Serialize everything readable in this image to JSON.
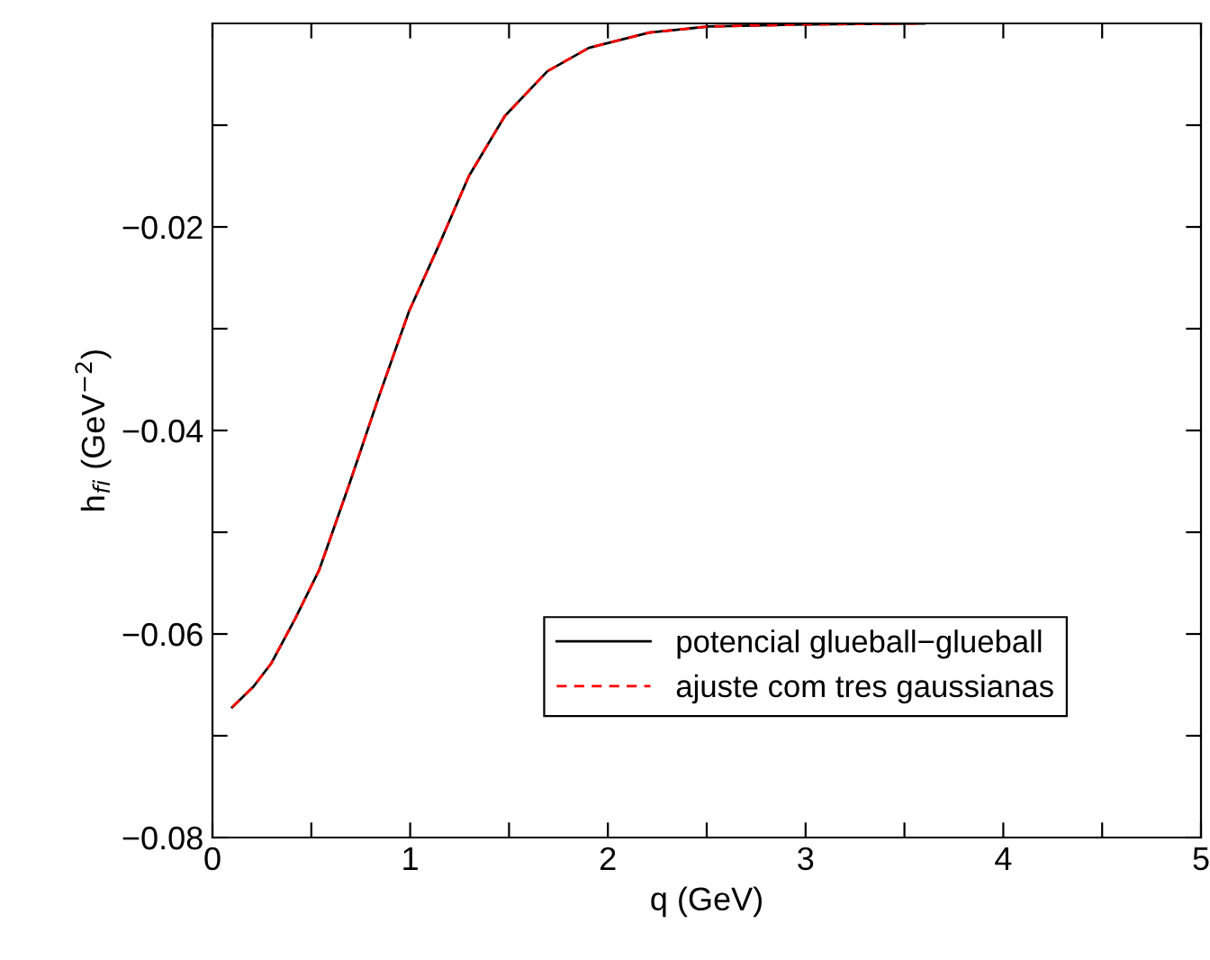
{
  "chart_data": {
    "type": "line",
    "xlabel": "q (GeV)",
    "ylabel": "h$_{fi}$ (GeV$^{−2}$)",
    "xlim": [
      0,
      5
    ],
    "ylim": [
      -0.08,
      0
    ],
    "xticks": [
      0,
      {
        "value": 0.5,
        "label": null
      },
      1,
      {
        "value": 1.5,
        "label": null
      },
      2,
      {
        "value": 2.5,
        "label": null
      },
      3,
      {
        "value": 3.5,
        "label": null
      },
      4,
      {
        "value": 4.5,
        "label": null
      },
      5
    ],
    "yticks": [
      -0.08,
      {
        "value": -0.07,
        "label": null
      },
      -0.06,
      {
        "value": -0.05,
        "label": null
      },
      -0.04,
      {
        "value": -0.03,
        "label": null
      },
      -0.02,
      {
        "value": -0.01,
        "label": null
      }
    ],
    "x": [
      0.1,
      0.206,
      0.297,
      0.418,
      0.54,
      0.69,
      0.843,
      0.994,
      1.145,
      1.297,
      1.479,
      1.694,
      1.904,
      2.21,
      2.51,
      3.0,
      3.6
    ],
    "series": [
      {
        "name": "potencial glueball−glueball",
        "color": "#000000",
        "line_style": "solid",
        "values": [
          -0.0672,
          -0.0652,
          -0.0629,
          -0.0585,
          -0.0537,
          -0.0454,
          -0.0366,
          -0.0283,
          -0.0218,
          -0.015,
          -0.0091,
          -0.0047,
          -0.0024,
          -0.0009,
          -0.0003,
          -0.0001,
          0.0
        ]
      },
      {
        "name": "ajuste com tres gaussianas",
        "color": "#ff0000",
        "line_style": "dashed",
        "values": [
          -0.0672,
          -0.0652,
          -0.0629,
          -0.0585,
          -0.0537,
          -0.0454,
          -0.0366,
          -0.0283,
          -0.0218,
          -0.015,
          -0.0091,
          -0.0047,
          -0.0024,
          -0.0009,
          -0.0003,
          -0.0001,
          0.0
        ]
      }
    ],
    "legend": "bottom right",
    "grid": false
  }
}
